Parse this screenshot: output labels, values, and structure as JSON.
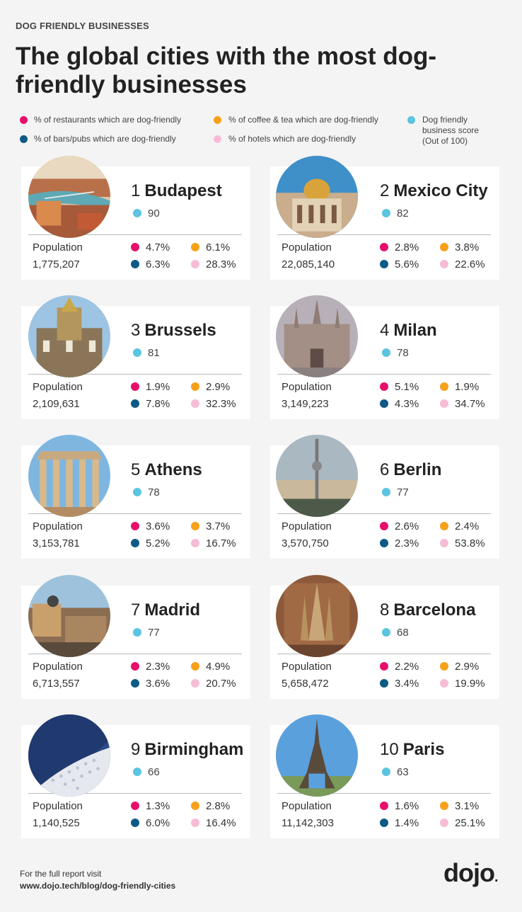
{
  "header": {
    "eyebrow": "DOG FRIENDLY BUSINESSES",
    "title": "The global cities with the most dog-friendly businesses"
  },
  "legend": {
    "restaurants": "% of restaurants which are dog-friendly",
    "coffee": "% of coffee & tea which are dog-friendly",
    "score_line1": "Dog friendly",
    "score_line2": "business score",
    "score_line3": "(Out of 100)",
    "bars": "% of bars/pubs which are dog-friendly",
    "hotels": "% of hotels which are dog-friendly"
  },
  "colors": {
    "restaurants": "#e6106b",
    "coffee": "#f7a11a",
    "bars": "#0e5a86",
    "hotels": "#f6bcd6",
    "score": "#5bc4e0"
  },
  "population_label": "Population",
  "cities": [
    {
      "rank": "1",
      "name": "Budapest",
      "score": "90",
      "population": "1,775,207",
      "restaurants": "4.7%",
      "coffee": "6.1%",
      "bars": "6.3%",
      "hotels": "28.3%",
      "photo": "budapest-photo"
    },
    {
      "rank": "2",
      "name": "Mexico City",
      "score": "82",
      "population": "22,085,140",
      "restaurants": "2.8%",
      "coffee": "3.8%",
      "bars": "5.6%",
      "hotels": "22.6%",
      "photo": "mexico-city-photo"
    },
    {
      "rank": "3",
      "name": "Brussels",
      "score": "81",
      "population": "2,109,631",
      "restaurants": "1.9%",
      "coffee": "2.9%",
      "bars": "7.8%",
      "hotels": "32.3%",
      "photo": "brussels-photo"
    },
    {
      "rank": "4",
      "name": "Milan",
      "score": "78",
      "population": "3,149,223",
      "restaurants": "5.1%",
      "coffee": "1.9%",
      "bars": "4.3%",
      "hotels": "34.7%",
      "photo": "milan-photo"
    },
    {
      "rank": "5",
      "name": "Athens",
      "score": "78",
      "population": "3,153,781",
      "restaurants": "3.6%",
      "coffee": "3.7%",
      "bars": "5.2%",
      "hotels": "16.7%",
      "photo": "athens-photo"
    },
    {
      "rank": "6",
      "name": "Berlin",
      "score": "77",
      "population": "3,570,750",
      "restaurants": "2.6%",
      "coffee": "2.4%",
      "bars": "2.3%",
      "hotels": "53.8%",
      "photo": "berlin-photo"
    },
    {
      "rank": "7",
      "name": "Madrid",
      "score": "77",
      "population": "6,713,557",
      "restaurants": "2.3%",
      "coffee": "4.9%",
      "bars": "3.6%",
      "hotels": "20.7%",
      "photo": "madrid-photo"
    },
    {
      "rank": "8",
      "name": "Barcelona",
      "score": "68",
      "population": "5,658,472",
      "restaurants": "2.2%",
      "coffee": "2.9%",
      "bars": "3.4%",
      "hotels": "19.9%",
      "photo": "barcelona-photo"
    },
    {
      "rank": "9",
      "name": "Birmingham",
      "score": "66",
      "population": "1,140,525",
      "restaurants": "1.3%",
      "coffee": "2.8%",
      "bars": "6.0%",
      "hotels": "16.4%",
      "photo": "birmingham-photo"
    },
    {
      "rank": "10",
      "name": "Paris",
      "score": "63",
      "population": "11,142,303",
      "restaurants": "1.6%",
      "coffee": "3.1%",
      "bars": "1.4%",
      "hotels": "25.1%",
      "photo": "paris-photo"
    }
  ],
  "footer": {
    "line1": "For the full report visit",
    "url": "www.dojo.tech/blog/dog-friendly-cities",
    "logo": "dojo",
    "logo_dot": "."
  }
}
